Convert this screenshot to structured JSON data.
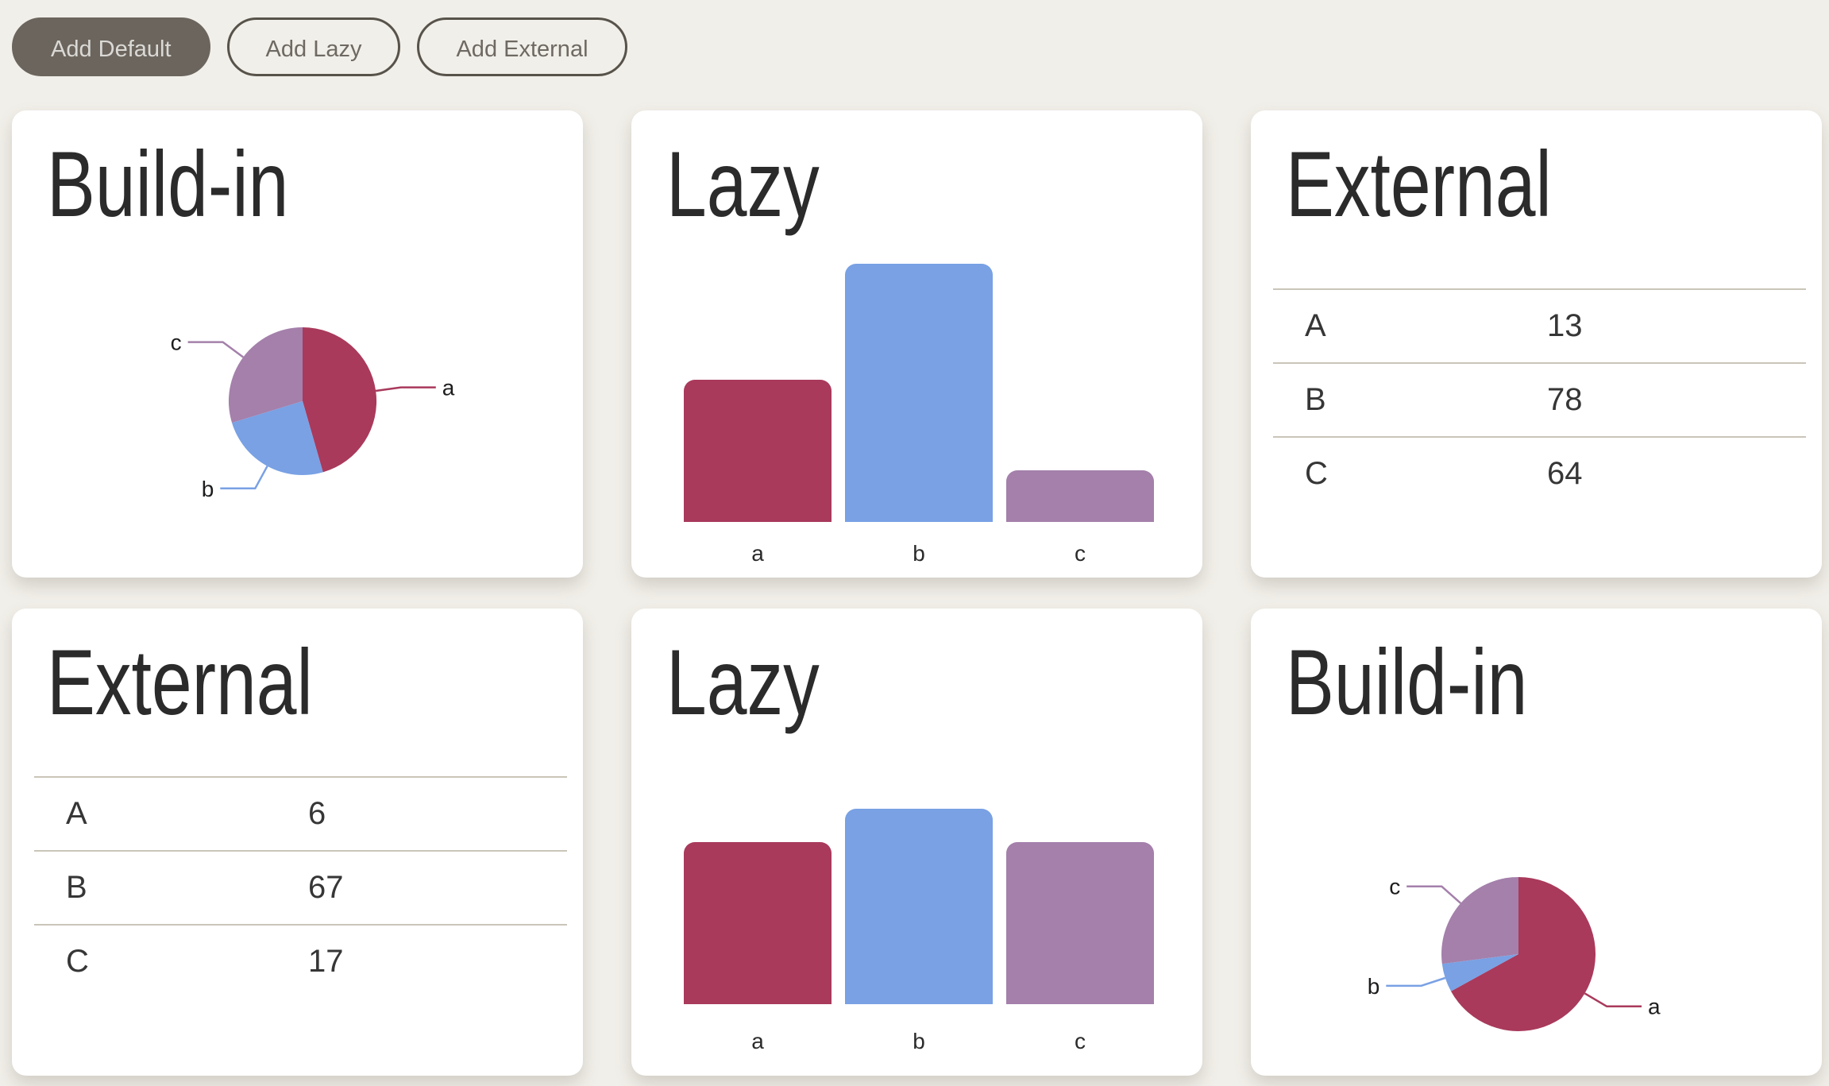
{
  "page": {
    "background_color": "#f1efe9",
    "card_color": "#ffffff"
  },
  "colors": {
    "series": {
      "a": "#a93a5c",
      "b": "#79a1e4",
      "c": "#a480ab"
    },
    "button_fill": "#6b655e",
    "button_fill_text": "#dbd9d5",
    "button_outline_border": "#57534b",
    "button_outline_text": "#6e6962",
    "title_text": "#2b2b2b",
    "table_line": "#cac5b9"
  },
  "toolbar": {
    "buttons": [
      {
        "id": "add-default",
        "label": "Add Default",
        "variant": "filled"
      },
      {
        "id": "add-lazy",
        "label": "Add Lazy",
        "variant": "outline"
      },
      {
        "id": "add-external",
        "label": "Add External",
        "variant": "outline"
      }
    ]
  },
  "cards": [
    {
      "type": "pie",
      "title": "Build-in",
      "labels": [
        "a",
        "b",
        "c"
      ],
      "values": [
        46,
        25,
        30
      ]
    },
    {
      "type": "bar",
      "title": "Lazy",
      "categories": [
        "a",
        "b",
        "c"
      ],
      "values": [
        55,
        100,
        20
      ]
    },
    {
      "type": "table",
      "title": "External",
      "rows": [
        {
          "label": "A",
          "value": 13
        },
        {
          "label": "B",
          "value": 78
        },
        {
          "label": "C",
          "value": 64
        }
      ]
    },
    {
      "type": "table",
      "title": "External",
      "rows": [
        {
          "label": "A",
          "value": 6
        },
        {
          "label": "B",
          "value": 67
        },
        {
          "label": "C",
          "value": 17
        }
      ]
    },
    {
      "type": "bar",
      "title": "Lazy",
      "categories": [
        "a",
        "b",
        "c"
      ],
      "values": [
        83,
        100,
        83
      ]
    },
    {
      "type": "pie",
      "title": "Build-in",
      "labels": [
        "a",
        "b",
        "c"
      ],
      "values": [
        67,
        6,
        27
      ]
    }
  ],
  "chart_data": [
    {
      "type": "pie",
      "title": "Build-in",
      "labels": [
        "a",
        "b",
        "c"
      ],
      "values": [
        46,
        25,
        30
      ],
      "value_scale": "percent-share-estimated",
      "legend_position": "outside-leader-lines",
      "grid": false
    },
    {
      "type": "bar",
      "title": "Lazy",
      "categories": [
        "a",
        "b",
        "c"
      ],
      "values": [
        55,
        100,
        20
      ],
      "value_scale": "relative-0-100-estimated",
      "xlabel": "",
      "ylabel": "",
      "ylim": [
        0,
        100
      ],
      "grid": false,
      "axis_labels_shown": "x-only"
    },
    {
      "type": "table",
      "title": "External",
      "columns": [
        "label",
        "value"
      ],
      "rows": [
        [
          "A",
          13
        ],
        [
          "B",
          78
        ],
        [
          "C",
          64
        ]
      ]
    },
    {
      "type": "table",
      "title": "External",
      "columns": [
        "label",
        "value"
      ],
      "rows": [
        [
          "A",
          6
        ],
        [
          "B",
          67
        ],
        [
          "C",
          17
        ]
      ]
    },
    {
      "type": "bar",
      "title": "Lazy",
      "categories": [
        "a",
        "b",
        "c"
      ],
      "values": [
        83,
        100,
        83
      ],
      "value_scale": "relative-0-100-estimated",
      "xlabel": "",
      "ylabel": "",
      "ylim": [
        0,
        100
      ],
      "grid": false,
      "axis_labels_shown": "x-only"
    },
    {
      "type": "pie",
      "title": "Build-in",
      "labels": [
        "a",
        "b",
        "c"
      ],
      "values": [
        67,
        6,
        27
      ],
      "value_scale": "percent-share-estimated",
      "legend_position": "outside-leader-lines",
      "grid": false
    }
  ]
}
